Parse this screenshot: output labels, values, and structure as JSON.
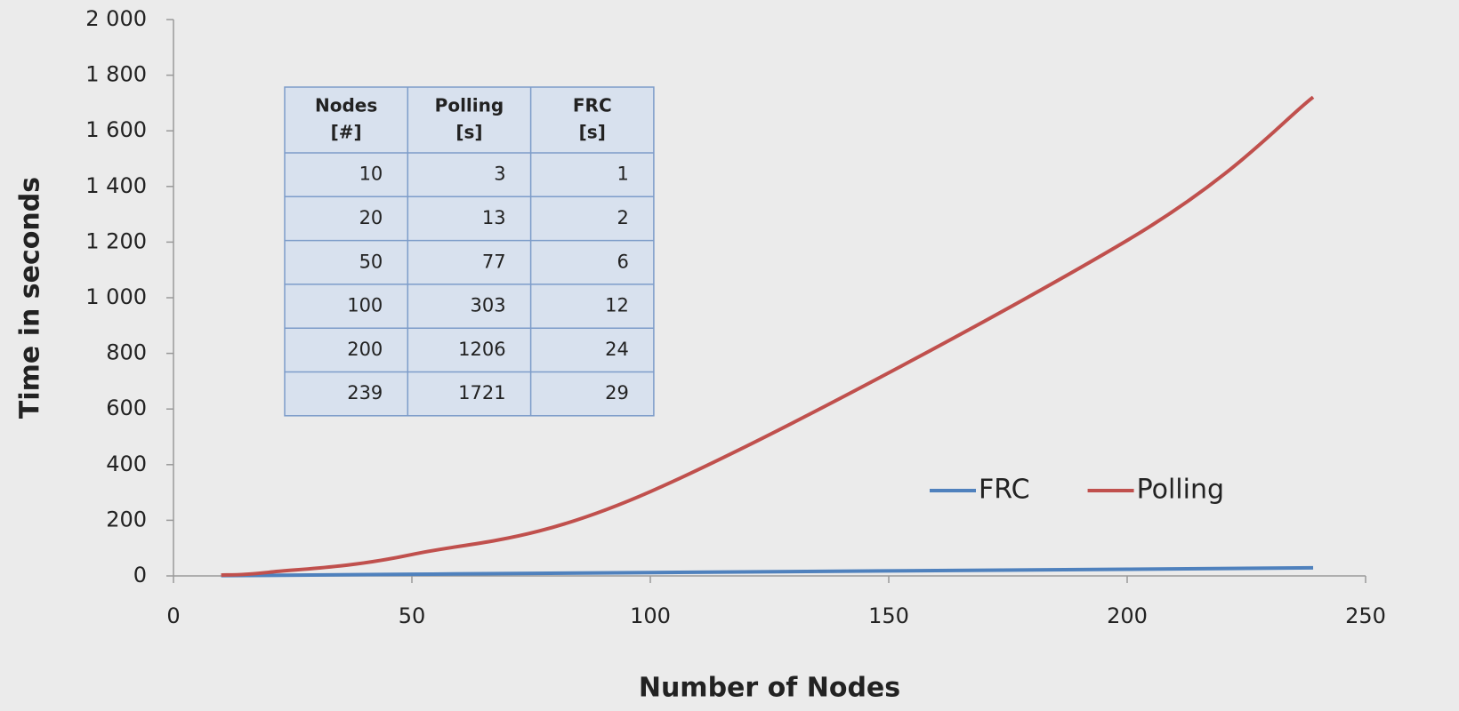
{
  "chart_data": {
    "type": "line",
    "x_label": "Number of Nodes",
    "y_label": "Time in seconds",
    "x": [
      10,
      20,
      50,
      100,
      200,
      239
    ],
    "series": [
      {
        "name": "FRC",
        "color": "#4f81bd",
        "values": [
          1,
          2,
          6,
          12,
          24,
          29
        ]
      },
      {
        "name": "Polling",
        "color": "#c0504d",
        "values": [
          3,
          13,
          77,
          303,
          1206,
          1721
        ]
      }
    ],
    "xlim": [
      0,
      250
    ],
    "xticks": [
      0,
      50,
      100,
      150,
      200,
      250
    ],
    "ylim": [
      0,
      2000
    ],
    "yticks": [
      0,
      200,
      400,
      600,
      800,
      {
        "value": 1000,
        "label": "1 000"
      },
      {
        "value": 1200,
        "label": "1 200"
      },
      {
        "value": 1400,
        "label": "1 400"
      },
      {
        "value": 1600,
        "label": "1 600"
      },
      {
        "value": 1800,
        "label": "1 800"
      },
      {
        "value": 2000,
        "label": "2 000"
      }
    ],
    "legend": "lower right",
    "table": {
      "header": [
        [
          "Nodes",
          "[#]"
        ],
        [
          "Polling",
          "[s]"
        ],
        [
          "FRC",
          "[s]"
        ]
      ],
      "rows": [
        [
          "10",
          "3",
          "1"
        ],
        [
          "20",
          "13",
          "2"
        ],
        [
          "50",
          "77",
          "6"
        ],
        [
          "100",
          "303",
          "12"
        ],
        [
          "200",
          "1206",
          "24"
        ],
        [
          "239",
          "1721",
          "29"
        ]
      ]
    }
  }
}
